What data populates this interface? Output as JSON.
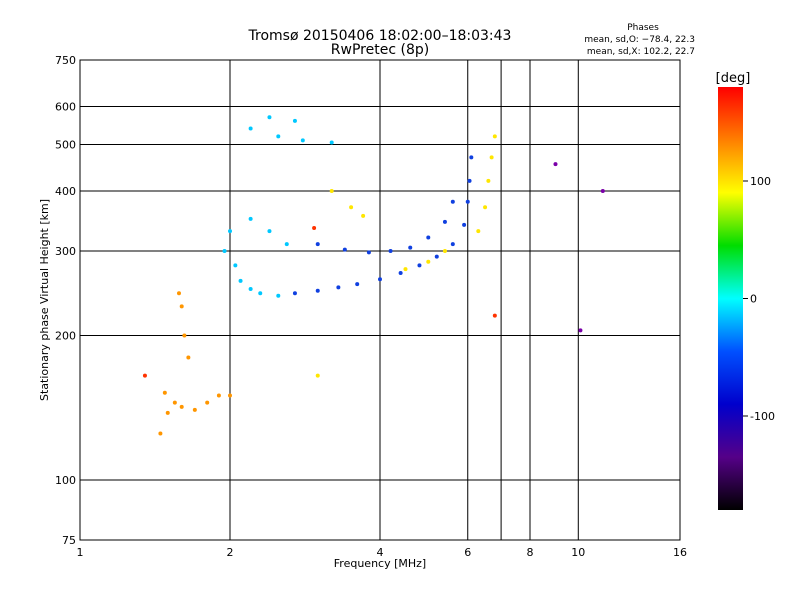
{
  "chart_data": {
    "type": "scatter",
    "title": "Tromsø 20150406 18:02:00–18:03:43",
    "subtitle": "RwPretec (8p)",
    "xlabel": "Frequency [MHz]",
    "ylabel": "Stationary phase Virtual Height [km]",
    "x_scale": "log",
    "y_scale": "log",
    "xlim": [
      1,
      16
    ],
    "ylim": [
      75,
      750
    ],
    "x_ticks": [
      1,
      2,
      4,
      6,
      8,
      10,
      16
    ],
    "y_ticks": [
      75,
      100,
      200,
      300,
      400,
      500,
      600,
      750
    ],
    "x_gridlines": [
      2,
      4,
      6,
      7,
      8,
      10
    ],
    "y_gridlines": [
      100,
      200,
      300,
      400,
      500,
      600
    ],
    "phases_box": {
      "heading": "Phases",
      "line1": "mean, sd,O: −78.4, 22.3",
      "line2": "mean, sd,X: 102.2, 22.7"
    },
    "colorbar": {
      "label": "[deg]",
      "range": [
        -180,
        180
      ],
      "ticks": [
        100,
        0,
        -100
      ],
      "colors": [
        "#ff0000",
        "#ff7f00",
        "#ffff00",
        "#00dd00",
        "#00ffff",
        "#0050ff",
        "#0000cc",
        "#550088",
        "#000000"
      ]
    },
    "series": [
      {
        "color": "#1040e0",
        "points": [
          [
            2.7,
            245
          ],
          [
            3.0,
            248
          ],
          [
            3.3,
            252
          ],
          [
            3.6,
            256
          ],
          [
            4.0,
            262
          ],
          [
            4.4,
            270
          ],
          [
            4.8,
            280
          ],
          [
            5.2,
            292
          ],
          [
            5.6,
            310
          ],
          [
            5.9,
            340
          ],
          [
            6.0,
            380
          ],
          [
            6.05,
            420
          ],
          [
            6.1,
            470
          ],
          [
            3.0,
            310
          ],
          [
            3.4,
            302
          ],
          [
            3.8,
            298
          ],
          [
            4.2,
            300
          ],
          [
            4.6,
            305
          ],
          [
            5.0,
            320
          ],
          [
            5.4,
            345
          ],
          [
            5.6,
            380
          ]
        ]
      },
      {
        "color": "#00c8ff",
        "points": [
          [
            1.95,
            300
          ],
          [
            2.05,
            280
          ],
          [
            2.1,
            260
          ],
          [
            2.2,
            250
          ],
          [
            2.3,
            245
          ],
          [
            2.5,
            242
          ],
          [
            2.0,
            330
          ],
          [
            2.2,
            350
          ],
          [
            2.4,
            330
          ],
          [
            2.6,
            310
          ],
          [
            2.2,
            540
          ],
          [
            2.5,
            520
          ],
          [
            2.8,
            510
          ],
          [
            3.2,
            505
          ],
          [
            2.4,
            570
          ],
          [
            2.7,
            560
          ]
        ]
      },
      {
        "color": "#ff9600",
        "points": [
          [
            1.45,
            125
          ],
          [
            1.5,
            138
          ],
          [
            1.55,
            145
          ],
          [
            1.6,
            142
          ],
          [
            1.7,
            140
          ],
          [
            1.8,
            145
          ],
          [
            1.9,
            150
          ],
          [
            2.0,
            150
          ],
          [
            1.65,
            180
          ],
          [
            1.62,
            200
          ],
          [
            1.6,
            230
          ],
          [
            1.58,
            245
          ],
          [
            1.48,
            152
          ]
        ]
      },
      {
        "color": "#ffe600",
        "points": [
          [
            4.5,
            275
          ],
          [
            5.0,
            285
          ],
          [
            5.4,
            300
          ],
          [
            6.3,
            330
          ],
          [
            6.5,
            370
          ],
          [
            6.6,
            420
          ],
          [
            6.7,
            470
          ],
          [
            6.8,
            520
          ],
          [
            3.2,
            400
          ],
          [
            3.5,
            370
          ],
          [
            3.7,
            355
          ],
          [
            3.0,
            165
          ]
        ]
      },
      {
        "color": "#ff3300",
        "points": [
          [
            1.35,
            165
          ],
          [
            2.95,
            335
          ],
          [
            6.8,
            220
          ]
        ]
      },
      {
        "color": "#7a00a8",
        "points": [
          [
            10.1,
            205
          ],
          [
            11.2,
            400
          ],
          [
            9.0,
            455
          ]
        ]
      }
    ]
  }
}
